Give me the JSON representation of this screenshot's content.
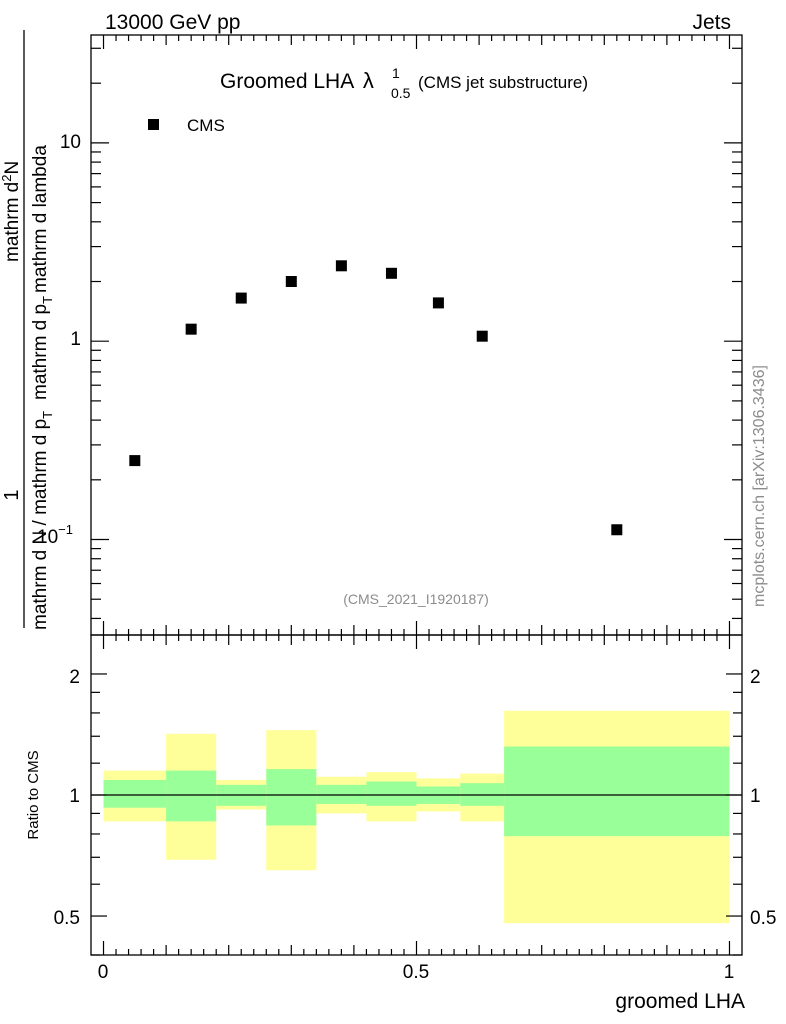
{
  "header": {
    "energy_label": "13000 GeV pp",
    "process_label": "Jets"
  },
  "side_label": "mcplots.cern.ch [arXiv:1306.3436]",
  "analysis_label": "(CMS_2021_I1920187)",
  "plot_title": {
    "main": "Groomed LHA",
    "symbol": "λ",
    "superscript": "1",
    "subscript": "0.5",
    "suffix": "(CMS jet substructure)"
  },
  "legend": {
    "entry": "CMS"
  },
  "y_axis_main": {
    "numerator": "1",
    "denominator_text": "mathrm d N / mathrm d p",
    "denominator_sub": "T",
    "frac_top_text": "mathrm d",
    "frac_top_sup": "2",
    "frac_top_end": "N",
    "frac_bottom_text": "mathrm d p",
    "frac_bottom_sub": "T",
    "frac_bottom_end": "mathrm d lambda",
    "tick_labels": [
      "10⁻¹",
      "1",
      "10"
    ]
  },
  "y_axis_ratio": {
    "label": "Ratio to CMS",
    "tick_labels": [
      "0.5",
      "1",
      "2"
    ]
  },
  "x_axis": {
    "label": "groomed LHA",
    "tick_labels": [
      "0",
      "0.5",
      "1"
    ]
  },
  "colors": {
    "marker": "#000000",
    "band_inner": "#99ff99",
    "band_outer": "#ffff99",
    "frame": "#000000",
    "annotation": "#8c8c8c"
  },
  "chart_data": [
    {
      "type": "scatter",
      "title": "Groomed LHA λ¹₀.₅ (CMS jet substructure)",
      "xlabel": "groomed LHA",
      "ylabel": "1/(dN/dpT) d²N/(dpT dλ)",
      "yscale": "log",
      "xlim": [
        -0.02,
        1.02
      ],
      "ylim": [
        0.033,
        35
      ],
      "series": [
        {
          "name": "CMS",
          "x": [
            0.05,
            0.14,
            0.22,
            0.3,
            0.38,
            0.46,
            0.535,
            0.605,
            0.82
          ],
          "y": [
            0.25,
            1.15,
            1.65,
            2.0,
            2.4,
            2.2,
            1.56,
            1.06,
            0.112
          ]
        }
      ]
    },
    {
      "type": "area",
      "title": "Ratio to CMS",
      "xlabel": "groomed LHA",
      "ylabel": "Ratio to CMS",
      "yscale": "log",
      "xlim": [
        -0.02,
        1.02
      ],
      "ylim": [
        0.4,
        2.5
      ],
      "reference_line": 1.0,
      "bins": [
        {
          "xlow": 0.0,
          "xhigh": 0.1,
          "inner": [
            0.93,
            1.09
          ],
          "outer": [
            0.86,
            1.15
          ]
        },
        {
          "xlow": 0.1,
          "xhigh": 0.18,
          "inner": [
            0.86,
            1.15
          ],
          "outer": [
            0.69,
            1.42
          ]
        },
        {
          "xlow": 0.18,
          "xhigh": 0.26,
          "inner": [
            0.94,
            1.06
          ],
          "outer": [
            0.92,
            1.09
          ]
        },
        {
          "xlow": 0.26,
          "xhigh": 0.34,
          "inner": [
            0.84,
            1.16
          ],
          "outer": [
            0.65,
            1.45
          ]
        },
        {
          "xlow": 0.34,
          "xhigh": 0.42,
          "inner": [
            0.95,
            1.06
          ],
          "outer": [
            0.9,
            1.11
          ]
        },
        {
          "xlow": 0.42,
          "xhigh": 0.5,
          "inner": [
            0.94,
            1.08
          ],
          "outer": [
            0.86,
            1.14
          ]
        },
        {
          "xlow": 0.5,
          "xhigh": 0.57,
          "inner": [
            0.95,
            1.05
          ],
          "outer": [
            0.91,
            1.1
          ]
        },
        {
          "xlow": 0.57,
          "xhigh": 0.64,
          "inner": [
            0.94,
            1.07
          ],
          "outer": [
            0.86,
            1.13
          ]
        },
        {
          "xlow": 0.64,
          "xhigh": 1.0,
          "inner": [
            0.79,
            1.32
          ],
          "outer": [
            0.48,
            1.62
          ]
        }
      ]
    }
  ]
}
